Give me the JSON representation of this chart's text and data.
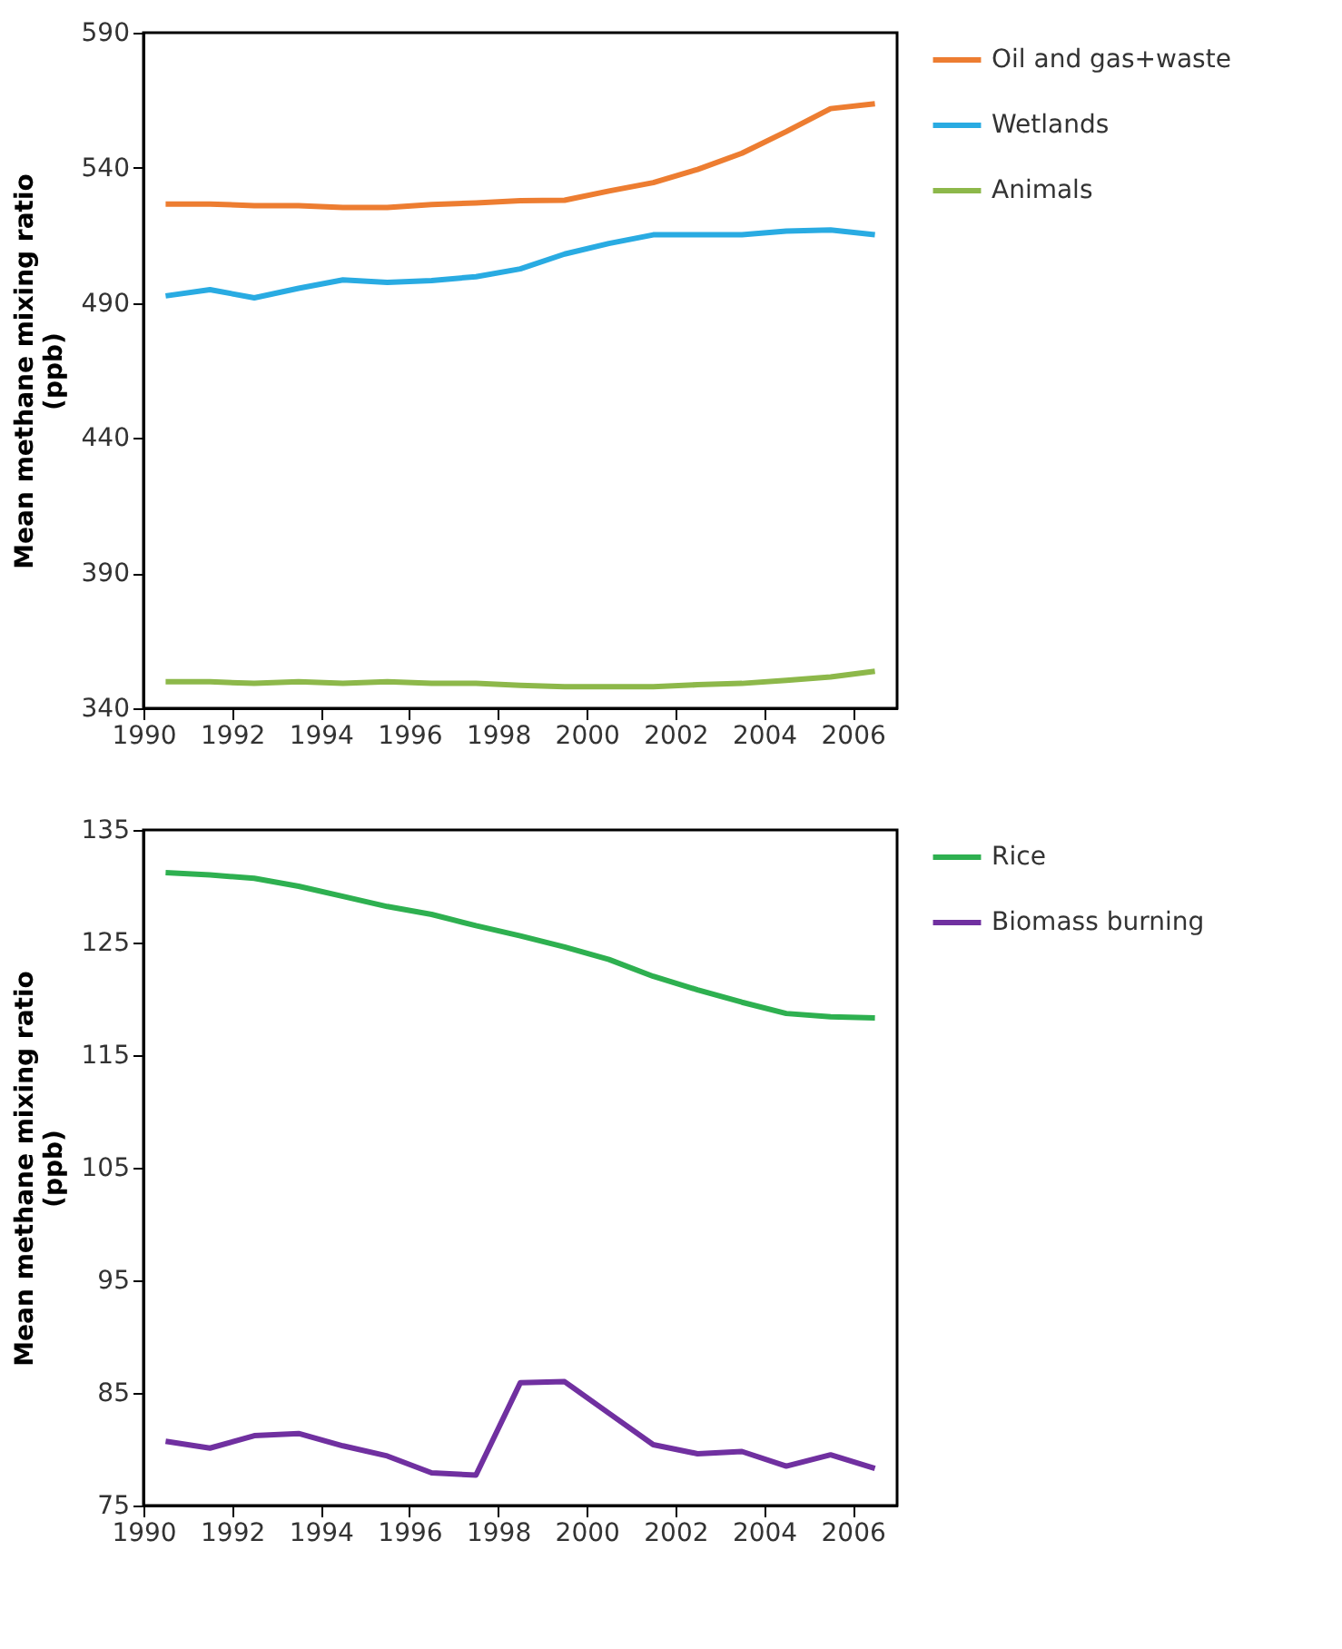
{
  "chart_data": [
    {
      "type": "line",
      "ylabel": "Mean methane mixing ratio (ppb)",
      "x": [
        1990.5,
        1991.5,
        1992.5,
        1993.5,
        1994.5,
        1995.5,
        1996.5,
        1997.5,
        1998.5,
        1999.5,
        2000.5,
        2001.5,
        2002.5,
        2003.5,
        2004.5,
        2005.5,
        2006.5
      ],
      "xlim": [
        1990,
        2007
      ],
      "xticks": [
        1990,
        1992,
        1994,
        1996,
        1998,
        2000,
        2002,
        2004,
        2006
      ],
      "ylim": [
        340,
        590
      ],
      "yticks": [
        340,
        390,
        440,
        490,
        540,
        590
      ],
      "grid": false,
      "legend": "right",
      "marker": "none",
      "line_style": "solid",
      "series": [
        {
          "name": "Oil and gas+waste",
          "color": "#ed7d31",
          "values": [
            526.6,
            526.6,
            526.0,
            526.0,
            525.3,
            525.3,
            526.4,
            527.0,
            527.8,
            528.0,
            531.4,
            534.5,
            539.4,
            545.4,
            553.4,
            561.9,
            563.7
          ]
        },
        {
          "name": "Wetlands",
          "color": "#29abe2",
          "values": [
            492.6,
            494.9,
            491.9,
            495.4,
            498.5,
            497.6,
            498.3,
            499.7,
            502.6,
            508.1,
            512.0,
            515.2,
            515.2,
            515.2,
            516.6,
            517.0,
            515.2
          ]
        },
        {
          "name": "Animals",
          "color": "#8db84a",
          "values": [
            349.8,
            349.8,
            349.2,
            349.8,
            349.2,
            349.8,
            349.2,
            349.2,
            348.5,
            348.0,
            348.0,
            348.0,
            348.7,
            349.2,
            350.3,
            351.6,
            353.7
          ]
        }
      ]
    },
    {
      "type": "line",
      "ylabel": "Mean methane mixing ratio (ppb)",
      "x": [
        1990.5,
        1991.5,
        1992.5,
        1993.5,
        1994.5,
        1995.5,
        1996.5,
        1997.5,
        1998.5,
        1999.5,
        2000.5,
        2001.5,
        2002.5,
        2003.5,
        2004.5,
        2005.5,
        2006.5
      ],
      "xlim": [
        1990,
        2007
      ],
      "xticks": [
        1990,
        1992,
        1994,
        1996,
        1998,
        2000,
        2002,
        2004,
        2006
      ],
      "ylim": [
        75,
        135
      ],
      "yticks": [
        75,
        85,
        95,
        105,
        115,
        125,
        135
      ],
      "grid": false,
      "legend": "right",
      "marker": "none",
      "line_style": "solid",
      "series": [
        {
          "name": "Rice",
          "color": "#2eb050",
          "values": [
            131.2,
            131.0,
            130.7,
            130.0,
            129.1,
            128.2,
            127.5,
            126.5,
            125.6,
            124.6,
            123.5,
            122.0,
            120.8,
            119.7,
            118.7,
            118.4,
            118.3
          ]
        },
        {
          "name": "Biomass burning",
          "color": "#7030a0",
          "values": [
            80.7,
            80.1,
            81.2,
            81.4,
            80.3,
            79.4,
            77.9,
            77.7,
            85.9,
            86.0,
            83.2,
            80.4,
            79.6,
            79.8,
            78.5,
            79.5,
            78.3
          ]
        }
      ]
    }
  ]
}
